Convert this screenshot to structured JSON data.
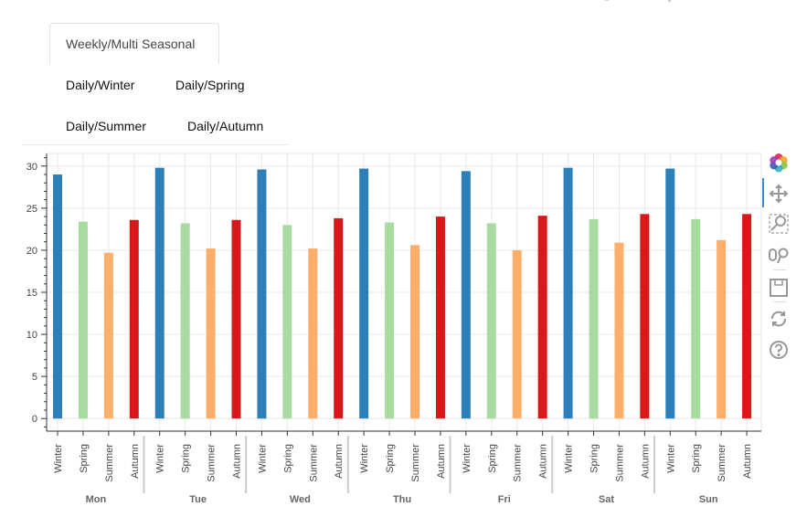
{
  "tabs": {
    "active": "Weekly/Multi Seasonal",
    "items": [
      "Daily/Winter",
      "Daily/Spring",
      "Daily/Summer",
      "Daily/Autumn"
    ]
  },
  "toolbar": {
    "tools": [
      "bokeh-logo-icon",
      "pan-icon",
      "box-zoom-icon",
      "wheel-zoom-icon",
      "save-icon",
      "reset-icon",
      "help-icon"
    ]
  },
  "chart_data": {
    "type": "bar",
    "title": "",
    "xlabel": "",
    "ylabel": "",
    "ylim": [
      -1.5,
      31.5
    ],
    "yticks": [
      0,
      5,
      10,
      15,
      20,
      25,
      30
    ],
    "grid": true,
    "categories": [
      "Mon",
      "Tue",
      "Wed",
      "Thu",
      "Fri",
      "Sat",
      "Sun"
    ],
    "series": [
      {
        "name": "Winter",
        "color": "#2c7fb8",
        "values": [
          29.0,
          29.8,
          29.6,
          29.7,
          29.4,
          29.8,
          29.7
        ]
      },
      {
        "name": "Spring",
        "color": "#a8dba0",
        "values": [
          23.4,
          23.2,
          23.0,
          23.3,
          23.2,
          23.7,
          23.7
        ]
      },
      {
        "name": "Summer",
        "color": "#fdae6b",
        "values": [
          19.7,
          20.2,
          20.2,
          20.6,
          20.0,
          20.9,
          21.2
        ]
      },
      {
        "name": "Autumn",
        "color": "#d7191c",
        "values": [
          23.6,
          23.6,
          23.8,
          24.0,
          24.1,
          24.3,
          24.3
        ]
      }
    ]
  }
}
